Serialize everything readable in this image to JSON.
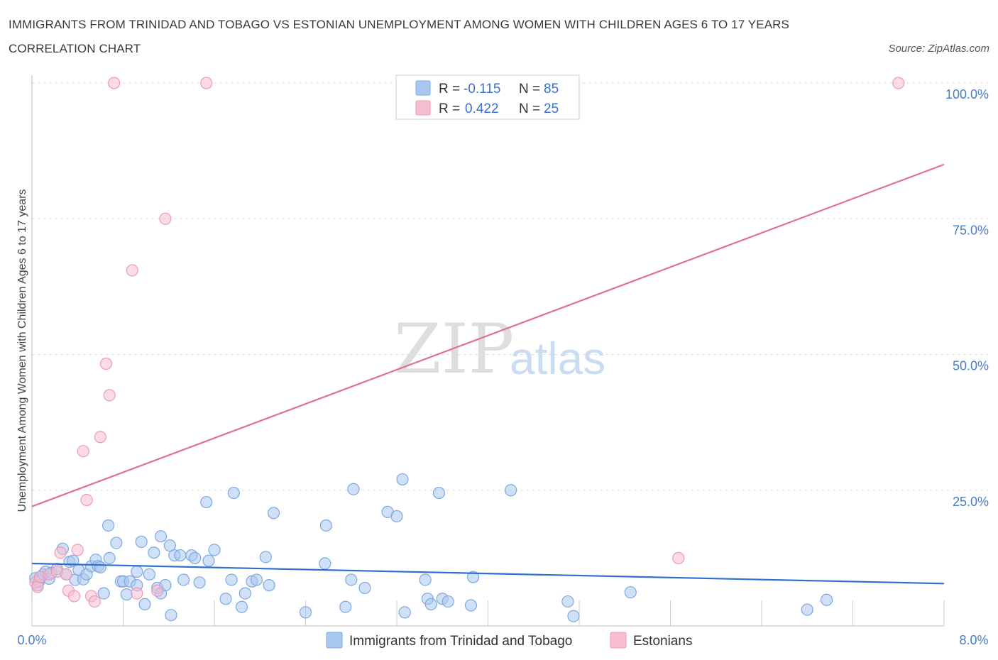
{
  "title": "IMMIGRANTS FROM TRINIDAD AND TOBAGO VS ESTONIAN UNEMPLOYMENT AMONG WOMEN WITH CHILDREN AGES 6 TO 17 YEARS CORRELATION CHART",
  "source": "Source: ZipAtlas.com",
  "watermark": {
    "zip": "ZIP",
    "atlas": "atlas"
  },
  "stats": [
    {
      "r_label": "R =",
      "r_value": "-0.115",
      "n_label": "N =",
      "n_value": "85"
    },
    {
      "r_label": "R =",
      "r_value": "0.422",
      "n_label": "N =",
      "n_value": "25"
    }
  ],
  "colors": {
    "blue_fill": "#a9c8f0",
    "blue_stroke": "#7ea8e0",
    "blue_line": "#2f6fcf",
    "pink_fill": "#f7bdd0",
    "pink_stroke": "#ec9ab6",
    "pink_line": "#e0709a",
    "grid": "#dddddd",
    "tick_text": "#4a7cc7"
  },
  "chart_data": {
    "type": "scatter",
    "title": "IMMIGRANTS FROM TRINIDAD AND TOBAGO VS ESTONIAN UNEMPLOYMENT AMONG WOMEN WITH CHILDREN AGES 6 TO 17 YEARS CORRELATION CHART",
    "xlabel": "",
    "ylabel": "Unemployment Among Women with Children Ages 6 to 17 years",
    "xlim": [
      0,
      8
    ],
    "ylim": [
      0,
      100
    ],
    "x_tick_labels": [
      "0.0%",
      "8.0%"
    ],
    "y_tick_labels": [
      "25.0%",
      "50.0%",
      "75.0%",
      "100.0%"
    ],
    "y_tick_values": [
      25,
      50,
      75,
      100
    ],
    "x_minor_ticks": [
      0,
      0.8,
      1.6,
      2.4,
      3.2,
      4.0,
      4.8,
      5.6,
      6.4,
      7.2,
      8.0
    ],
    "legend": [
      "Immigrants from Trinidad and Tobago",
      "Estonians"
    ],
    "series": [
      {
        "name": "Immigrants from Trinidad and Tobago",
        "color": "#a9c8f0",
        "trend": {
          "x": [
            0,
            8
          ],
          "y": [
            11.5,
            7.8
          ]
        },
        "points": [
          [
            0.03,
            8.8
          ],
          [
            0.05,
            7.5
          ],
          [
            0.06,
            8.2
          ],
          [
            0.08,
            9.0
          ],
          [
            0.1,
            9.5
          ],
          [
            0.12,
            10.0
          ],
          [
            0.15,
            8.7
          ],
          [
            0.17,
            9.8
          ],
          [
            0.22,
            10.5
          ],
          [
            0.27,
            14.2
          ],
          [
            0.3,
            9.5
          ],
          [
            0.33,
            11.8
          ],
          [
            0.36,
            12.0
          ],
          [
            0.38,
            8.5
          ],
          [
            0.41,
            10.3
          ],
          [
            0.45,
            8.6
          ],
          [
            0.48,
            9.5
          ],
          [
            0.52,
            11.0
          ],
          [
            0.56,
            12.2
          ],
          [
            0.58,
            11.0
          ],
          [
            0.6,
            10.8
          ],
          [
            0.63,
            6.0
          ],
          [
            0.67,
            18.5
          ],
          [
            0.68,
            12.5
          ],
          [
            0.74,
            15.3
          ],
          [
            0.78,
            8.2
          ],
          [
            0.8,
            8.2
          ],
          [
            0.83,
            5.8
          ],
          [
            0.86,
            8.2
          ],
          [
            0.92,
            7.5
          ],
          [
            0.92,
            10.0
          ],
          [
            0.96,
            15.5
          ],
          [
            0.99,
            4.0
          ],
          [
            1.03,
            9.5
          ],
          [
            1.07,
            13.5
          ],
          [
            1.1,
            7.0
          ],
          [
            1.13,
            6.0
          ],
          [
            1.13,
            16.5
          ],
          [
            1.17,
            7.5
          ],
          [
            1.21,
            14.8
          ],
          [
            1.22,
            2.0
          ],
          [
            1.25,
            13.0
          ],
          [
            1.3,
            13.0
          ],
          [
            1.33,
            8.5
          ],
          [
            1.4,
            13.0
          ],
          [
            1.43,
            12.5
          ],
          [
            1.47,
            8.0
          ],
          [
            1.53,
            22.8
          ],
          [
            1.55,
            12.0
          ],
          [
            1.6,
            14.0
          ],
          [
            1.7,
            5.0
          ],
          [
            1.75,
            8.5
          ],
          [
            1.77,
            24.5
          ],
          [
            1.84,
            3.5
          ],
          [
            1.87,
            6.0
          ],
          [
            1.93,
            8.2
          ],
          [
            1.97,
            8.5
          ],
          [
            2.05,
            12.7
          ],
          [
            2.08,
            7.5
          ],
          [
            2.12,
            20.8
          ],
          [
            2.4,
            2.5
          ],
          [
            2.57,
            11.5
          ],
          [
            2.58,
            18.5
          ],
          [
            2.75,
            3.5
          ],
          [
            2.8,
            8.5
          ],
          [
            2.82,
            25.2
          ],
          [
            2.92,
            7.0
          ],
          [
            3.12,
            21.0
          ],
          [
            3.2,
            20.2
          ],
          [
            3.25,
            27.0
          ],
          [
            3.27,
            2.5
          ],
          [
            3.45,
            8.5
          ],
          [
            3.47,
            5.0
          ],
          [
            3.5,
            4.0
          ],
          [
            3.57,
            24.5
          ],
          [
            3.6,
            5.0
          ],
          [
            3.65,
            4.5
          ],
          [
            3.85,
            3.8
          ],
          [
            3.87,
            9.0
          ],
          [
            4.2,
            25.0
          ],
          [
            4.7,
            4.5
          ],
          [
            4.75,
            1.8
          ],
          [
            5.25,
            6.2
          ],
          [
            6.8,
            3.0
          ],
          [
            6.97,
            4.8
          ]
        ]
      },
      {
        "name": "Estonians",
        "color": "#f7bdd0",
        "trend": {
          "x": [
            0,
            8
          ],
          "y": [
            22.0,
            85.0
          ]
        },
        "points": [
          [
            0.03,
            8.0
          ],
          [
            0.05,
            7.2
          ],
          [
            0.07,
            9.0
          ],
          [
            0.15,
            9.5
          ],
          [
            0.22,
            10.0
          ],
          [
            0.25,
            13.5
          ],
          [
            0.3,
            9.5
          ],
          [
            0.32,
            6.5
          ],
          [
            0.37,
            5.5
          ],
          [
            0.4,
            14.0
          ],
          [
            0.45,
            32.2
          ],
          [
            0.48,
            23.2
          ],
          [
            0.52,
            5.5
          ],
          [
            0.55,
            4.5
          ],
          [
            0.6,
            34.8
          ],
          [
            0.65,
            48.3
          ],
          [
            0.68,
            42.5
          ],
          [
            0.72,
            100.0
          ],
          [
            0.88,
            65.5
          ],
          [
            0.92,
            6.0
          ],
          [
            1.1,
            6.5
          ],
          [
            1.17,
            75.0
          ],
          [
            1.53,
            100.0
          ],
          [
            5.67,
            12.5
          ],
          [
            7.6,
            100.0
          ]
        ]
      }
    ]
  }
}
